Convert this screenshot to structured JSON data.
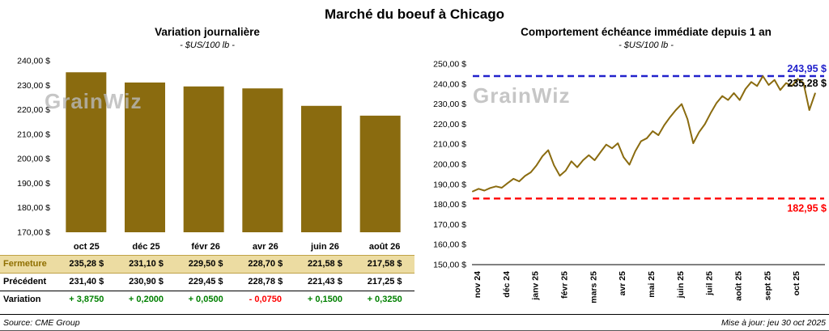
{
  "page": {
    "title": "Marché du boeuf à Chicago",
    "source": "Source: CME Group",
    "updated": "Mise à jour: jeu 30 oct 2025",
    "watermark": "GrainWiz"
  },
  "colors": {
    "gold": "#8a6b0f",
    "blue": "#2222cc",
    "red": "#ff0000",
    "green": "#008000",
    "fermeture_bg": "#ecdca2",
    "fermeture_border": "#bfa247"
  },
  "chart_data": [
    {
      "type": "bar",
      "title": "Variation journalière",
      "subtitle": "- $US/100 lb -",
      "categories": [
        "oct 25",
        "déc 25",
        "févr 26",
        "avr 26",
        "juin 26",
        "août 26"
      ],
      "values": [
        235.28,
        231.1,
        229.5,
        228.7,
        221.58,
        217.58
      ],
      "ylim": [
        170,
        240
      ],
      "ytick_step": 10,
      "ytick_labels": [
        "240,00 $",
        "230,00 $",
        "220,00 $",
        "210,00 $",
        "200,00 $",
        "190,00 $",
        "180,00 $",
        "170,00 $"
      ],
      "grid": false,
      "legend": false
    },
    {
      "type": "line",
      "title": "Comportement échéance immédiate depuis 1 an",
      "subtitle": "- $US/100 lb -",
      "x_labels": [
        "nov 24",
        "déc 24",
        "janv 25",
        "févr 25",
        "mars 25",
        "avr 25",
        "mai 25",
        "juin 25",
        "juil 25",
        "août 25",
        "sept 25",
        "oct 25"
      ],
      "values": [
        186.5,
        187.8,
        186.9,
        188.2,
        189.0,
        188.3,
        190.6,
        192.8,
        191.5,
        194.2,
        196.0,
        199.5,
        204.0,
        207.0,
        199.5,
        194.3,
        196.8,
        201.5,
        198.5,
        202.0,
        204.5,
        202.0,
        206.0,
        209.8,
        208.0,
        210.5,
        203.5,
        199.8,
        206.5,
        211.5,
        213.0,
        216.5,
        214.5,
        219.5,
        223.5,
        227.0,
        230.0,
        222.5,
        210.5,
        216.0,
        220.0,
        225.5,
        230.5,
        234.0,
        232.0,
        235.5,
        232.0,
        237.5,
        241.0,
        239.0,
        243.95,
        239.5,
        242.0,
        237.0,
        240.5,
        239.0,
        242.5,
        240.5,
        227.0,
        235.28
      ],
      "ylim": [
        150,
        250
      ],
      "ytick_step": 10,
      "ytick_labels": [
        "250,00 $",
        "240,00 $",
        "230,00 $",
        "220,00 $",
        "210,00 $",
        "200,00 $",
        "190,00 $",
        "180,00 $",
        "170,00 $",
        "160,00 $",
        "150,00 $"
      ],
      "high_line": {
        "value": 243.95,
        "label": "243,95 $"
      },
      "last_label": {
        "value": 235.28,
        "label": "235,28 $"
      },
      "low_line": {
        "value": 182.95,
        "label": "182,95 $"
      },
      "grid": false,
      "legend": false
    }
  ],
  "table": {
    "rows": [
      {
        "key": "fermeture",
        "label": "Fermeture",
        "values": [
          "235,28 $",
          "231,10 $",
          "229,50 $",
          "228,70 $",
          "221,58 $",
          "217,58 $"
        ]
      },
      {
        "key": "precedent",
        "label": "Précédent",
        "values": [
          "231,40 $",
          "230,90 $",
          "229,45 $",
          "228,78 $",
          "221,43 $",
          "217,25 $"
        ]
      },
      {
        "key": "variation",
        "label": "Variation",
        "values": [
          "+ 3,8750",
          "+ 0,2000",
          "+ 0,0500",
          "- 0,0750",
          "+ 0,1500",
          "+ 0,3250"
        ]
      }
    ]
  }
}
